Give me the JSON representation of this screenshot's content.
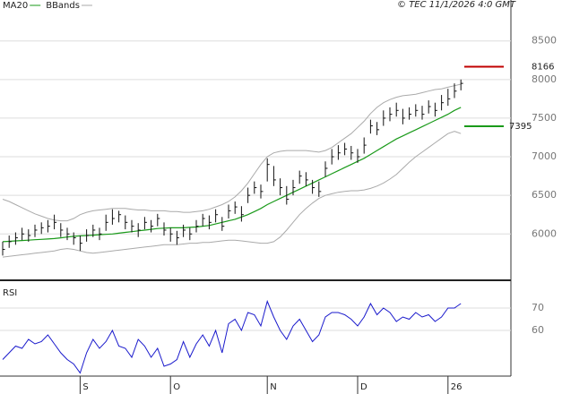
{
  "chart_data": [
    {
      "type": "ohlc",
      "title": "© TEC 11/1/2026 4:0 GMT",
      "categories": [
        null,
        null,
        null,
        null,
        null,
        null,
        null,
        null,
        null,
        null,
        null,
        null,
        "S",
        null,
        null,
        null,
        null,
        null,
        null,
        null,
        null,
        null,
        null,
        null,
        null,
        null,
        "O",
        null,
        null,
        null,
        null,
        null,
        null,
        null,
        null,
        null,
        null,
        null,
        null,
        null,
        null,
        "N",
        null,
        null,
        null,
        null,
        null,
        null,
        null,
        null,
        null,
        null,
        null,
        null,
        null,
        "D",
        null,
        null,
        null,
        null,
        null,
        null,
        null,
        null,
        null,
        null,
        null,
        null,
        null,
        "26",
        null,
        null
      ],
      "price": {
        "color": "#111111",
        "high": [
          5900,
          5980,
          6020,
          6080,
          6060,
          6120,
          6150,
          6180,
          6250,
          6140,
          6080,
          6020,
          5980,
          6060,
          6120,
          6080,
          6250,
          6320,
          6300,
          6240,
          6180,
          6140,
          6220,
          6180,
          6260,
          6150,
          6080,
          6040,
          6120,
          6080,
          6180,
          6260,
          6240,
          6320,
          6220,
          6380,
          6420,
          6360,
          6600,
          6680,
          6640,
          6980,
          6880,
          6720,
          6620,
          6700,
          6820,
          6800,
          6700,
          6680,
          6940,
          7100,
          7150,
          7180,
          7140,
          7100,
          7250,
          7480,
          7450,
          7600,
          7640,
          7700,
          7620,
          7640,
          7680,
          7660,
          7730,
          7700,
          7800,
          7880,
          7950,
          8000
        ],
        "low": [
          5720,
          5820,
          5860,
          5920,
          5900,
          5960,
          6000,
          6020,
          6060,
          5960,
          5920,
          5860,
          5780,
          5900,
          5960,
          5920,
          6040,
          6120,
          6150,
          6060,
          6020,
          5960,
          6060,
          6020,
          6100,
          5980,
          5900,
          5860,
          5960,
          5920,
          6020,
          6100,
          6060,
          6150,
          6040,
          6200,
          6260,
          6160,
          6400,
          6520,
          6460,
          6680,
          6620,
          6500,
          6380,
          6500,
          6650,
          6620,
          6520,
          6480,
          6740,
          6900,
          6960,
          7020,
          6960,
          6920,
          7040,
          7300,
          7280,
          7400,
          7460,
          7520,
          7420,
          7480,
          7520,
          7480,
          7560,
          7520,
          7600,
          7660,
          7760,
          7860
        ],
        "close": [
          5800,
          5900,
          5950,
          6000,
          5980,
          6050,
          6080,
          6100,
          6150,
          6050,
          6000,
          5950,
          5880,
          5980,
          6050,
          6000,
          6150,
          6200,
          6250,
          6150,
          6100,
          6050,
          6150,
          6100,
          6200,
          6050,
          6000,
          5950,
          6050,
          6000,
          6100,
          6200,
          6150,
          6250,
          6100,
          6300,
          6350,
          6250,
          6500,
          6600,
          6550,
          6900,
          6700,
          6600,
          6450,
          6600,
          6750,
          6700,
          6600,
          6550,
          6850,
          7000,
          7050,
          7100,
          7050,
          7000,
          7150,
          7400,
          7350,
          7500,
          7550,
          7600,
          7500,
          7550,
          7600,
          7550,
          7650,
          7600,
          7700,
          7750,
          7850,
          7950
        ]
      },
      "series": [
        {
          "name": "MA20",
          "color": "#1a9a1a",
          "values": [
            5900,
            5905,
            5910,
            5915,
            5920,
            5925,
            5930,
            5935,
            5940,
            5950,
            5960,
            5970,
            5975,
            5980,
            5985,
            5990,
            5995,
            6000,
            6010,
            6020,
            6030,
            6040,
            6050,
            6060,
            6070,
            6075,
            6080,
            6080,
            6080,
            6085,
            6090,
            6100,
            6110,
            6130,
            6150,
            6170,
            6190,
            6220,
            6250,
            6290,
            6330,
            6380,
            6420,
            6460,
            6500,
            6540,
            6580,
            6620,
            6660,
            6700,
            6740,
            6780,
            6820,
            6860,
            6900,
            6940,
            6980,
            7030,
            7080,
            7130,
            7180,
            7230,
            7270,
            7310,
            7350,
            7390,
            7430,
            7470,
            7510,
            7550,
            7600,
            7640
          ]
        },
        {
          "name": "BBands",
          "color": "#aaaaaa",
          "upper": [
            6450,
            6420,
            6380,
            6340,
            6300,
            6260,
            6230,
            6200,
            6180,
            6170,
            6170,
            6200,
            6250,
            6280,
            6300,
            6310,
            6320,
            6330,
            6330,
            6330,
            6320,
            6310,
            6310,
            6300,
            6300,
            6300,
            6290,
            6290,
            6280,
            6280,
            6290,
            6300,
            6320,
            6350,
            6380,
            6420,
            6480,
            6560,
            6660,
            6780,
            6900,
            7000,
            7050,
            7070,
            7080,
            7080,
            7080,
            7080,
            7070,
            7060,
            7080,
            7120,
            7180,
            7240,
            7300,
            7380,
            7460,
            7560,
            7640,
            7700,
            7740,
            7770,
            7790,
            7800,
            7810,
            7830,
            7850,
            7870,
            7880,
            7900,
            7920,
            7940
          ],
          "lower": [
            5700,
            5710,
            5720,
            5730,
            5740,
            5750,
            5760,
            5770,
            5780,
            5800,
            5810,
            5800,
            5780,
            5760,
            5750,
            5760,
            5770,
            5780,
            5790,
            5800,
            5810,
            5820,
            5830,
            5840,
            5850,
            5860,
            5860,
            5860,
            5870,
            5880,
            5880,
            5890,
            5890,
            5900,
            5910,
            5920,
            5920,
            5910,
            5900,
            5890,
            5880,
            5880,
            5900,
            5960,
            6050,
            6150,
            6250,
            6330,
            6400,
            6460,
            6500,
            6520,
            6540,
            6550,
            6560,
            6560,
            6570,
            6590,
            6620,
            6660,
            6710,
            6770,
            6850,
            6930,
            7000,
            7060,
            7120,
            7180,
            7240,
            7300,
            7330,
            7300
          ]
        }
      ],
      "levels": [
        {
          "value": 8166,
          "color": "#c00000"
        },
        {
          "value": 7395,
          "color": "#1a9a1a"
        }
      ],
      "ylim": [
        5400,
        9030
      ],
      "yticks": [
        6000,
        6500,
        7000,
        7500,
        8000,
        8500
      ],
      "grid": true
    },
    {
      "type": "line",
      "title": "RSI",
      "series": [
        {
          "name": "RSI",
          "color": "#1a1acc",
          "values": [
            47,
            50,
            53,
            52,
            56,
            54,
            55,
            58,
            54,
            50,
            47,
            45,
            41,
            50,
            56,
            52,
            55,
            60,
            53,
            52,
            48,
            56,
            53,
            48,
            52,
            44,
            45,
            47,
            55,
            48,
            54,
            58,
            53,
            60,
            50,
            63,
            65,
            60,
            68,
            67,
            62,
            73,
            66,
            60,
            56,
            62,
            65,
            60,
            55,
            58,
            66,
            68,
            68,
            67,
            65,
            62,
            66,
            72,
            67,
            70,
            68,
            64,
            66,
            65,
            68,
            66,
            67,
            64,
            66,
            70,
            70,
            72
          ]
        }
      ],
      "ylim": [
        39.6,
        81.2
      ],
      "yticks": [
        70,
        60
      ],
      "grid": true
    }
  ]
}
